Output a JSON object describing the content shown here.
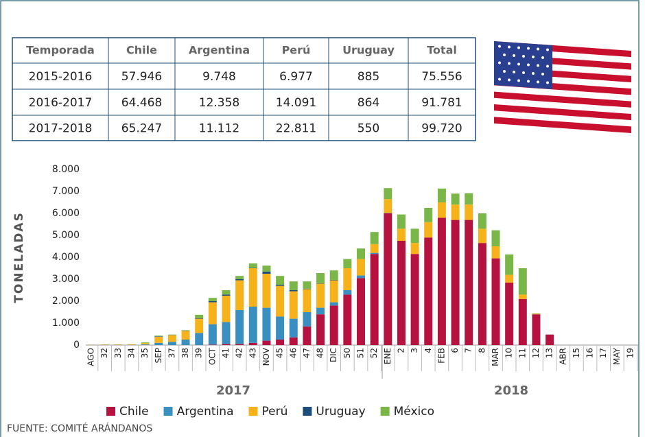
{
  "table": {
    "header": [
      "Temporada",
      "Chile",
      "Argentina",
      "Perú",
      "Uruguay",
      "Total"
    ],
    "rows": [
      [
        "2015-2016",
        "57.946",
        "9.748",
        "6.977",
        "885",
        "75.556"
      ],
      [
        "2016-2017",
        "64.468",
        "12.358",
        "14.091",
        "864",
        "91.781"
      ],
      [
        "2017-2018",
        "65.247",
        "11.112",
        "22.811",
        "550",
        "99.720"
      ]
    ]
  },
  "chart_data": {
    "type": "stacked_bar",
    "y_label": "TONELADAS",
    "categories": [
      "AGO",
      "32",
      "33",
      "34",
      "35",
      "SEP",
      "37",
      "38",
      "39",
      "OCT",
      "41",
      "42",
      "43",
      "NOV",
      "45",
      "46",
      "47",
      "48",
      "DIC",
      "50",
      "51",
      "52",
      "ENE",
      "2",
      "3",
      "4",
      "FEB",
      "6",
      "7",
      "8",
      "MAR",
      "10",
      "11",
      "12",
      "13",
      "ABR",
      "15",
      "16",
      "17",
      "MAY",
      "19"
    ],
    "year_labels": [
      "2017",
      "2018"
    ],
    "series": [
      {
        "name": "Chile",
        "color": "#b5123f",
        "values": [
          0,
          0,
          0,
          0,
          0,
          0,
          0,
          0,
          0,
          20,
          50,
          50,
          100,
          200,
          250,
          350,
          850,
          1400,
          1800,
          2300,
          3050,
          4150,
          6000,
          4750,
          4150,
          4900,
          5800,
          5700,
          5700,
          4650,
          3950,
          2850,
          2100,
          1400,
          480,
          0,
          0,
          0,
          0,
          0,
          0
        ]
      },
      {
        "name": "Argentina",
        "color": "#3a8fc1",
        "values": [
          10,
          10,
          10,
          10,
          30,
          100,
          150,
          250,
          550,
          930,
          1000,
          1550,
          1650,
          1500,
          1050,
          850,
          650,
          300,
          150,
          200,
          120,
          50,
          20,
          0,
          0,
          0,
          0,
          0,
          0,
          0,
          0,
          0,
          0,
          0,
          0,
          0,
          0,
          0,
          0,
          0,
          0
        ]
      },
      {
        "name": "Perú",
        "color": "#f5b21b",
        "values": [
          10,
          20,
          20,
          30,
          60,
          280,
          300,
          400,
          650,
          1000,
          1200,
          1350,
          1750,
          1550,
          1400,
          1250,
          1050,
          1100,
          1000,
          1000,
          750,
          400,
          630,
          550,
          500,
          700,
          700,
          700,
          700,
          650,
          550,
          350,
          200,
          30,
          0,
          0,
          0,
          0,
          0,
          0,
          0
        ]
      },
      {
        "name": "Uruguay",
        "color": "#1d4e79",
        "values": [
          0,
          0,
          0,
          0,
          0,
          20,
          10,
          10,
          20,
          50,
          50,
          50,
          20,
          100,
          50,
          50,
          20,
          20,
          20,
          0,
          0,
          0,
          0,
          0,
          0,
          0,
          0,
          0,
          0,
          0,
          0,
          0,
          0,
          0,
          0,
          0,
          0,
          0,
          0,
          0,
          0
        ]
      },
      {
        "name": "México",
        "color": "#7ab648",
        "values": [
          0,
          0,
          0,
          0,
          30,
          30,
          20,
          20,
          160,
          150,
          200,
          150,
          200,
          270,
          400,
          400,
          330,
          460,
          430,
          420,
          480,
          550,
          500,
          650,
          650,
          650,
          630,
          500,
          520,
          700,
          730,
          930,
          1200,
          20,
          0,
          0,
          0,
          0,
          0,
          0,
          0
        ]
      }
    ],
    "ylim": [
      0,
      8000
    ],
    "yticks": [
      0,
      {
        "value": 1000,
        "label": "1.000"
      },
      {
        "value": 2000,
        "label": "2.000"
      },
      {
        "value": 3000,
        "label": "3.000"
      },
      {
        "value": 4000,
        "label": "4.000"
      },
      {
        "value": 5000,
        "label": "5.000"
      },
      {
        "value": 6000,
        "label": "6.000"
      },
      {
        "value": 7000,
        "label": "7.000"
      },
      {
        "value": 8000,
        "label": "8.000"
      }
    ],
    "grid": false,
    "source": "FUENTE: COMITÉ ARÁNDANOS"
  }
}
